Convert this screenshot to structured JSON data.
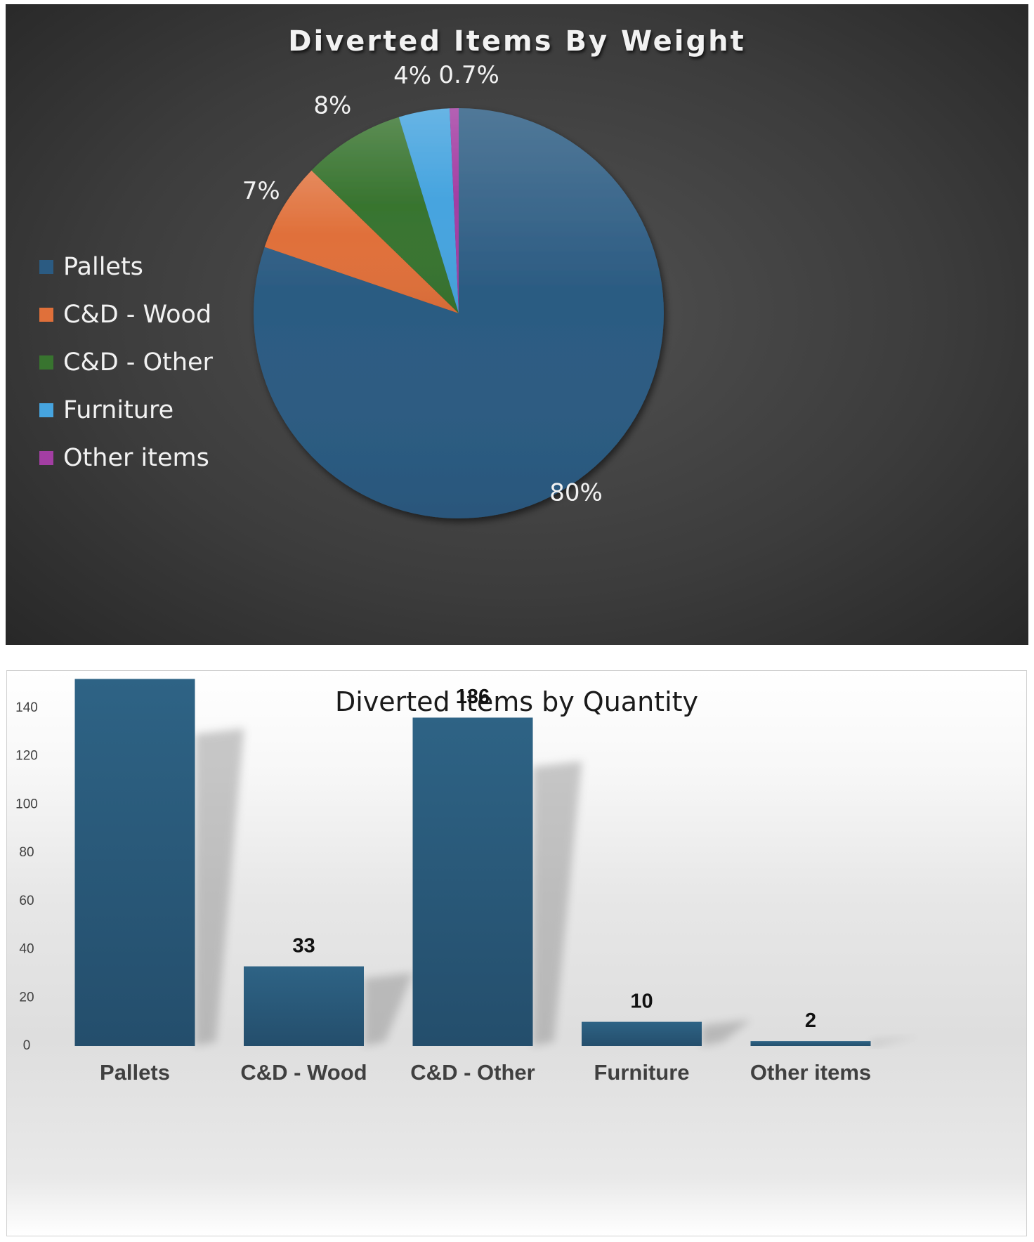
{
  "chart_data": [
    {
      "type": "pie",
      "title": "Diverted Items By Weight",
      "categories": [
        "Pallets",
        "C&D - Wood",
        "C&D - Other",
        "Furniture",
        "Other items"
      ],
      "values": [
        80,
        7,
        8,
        4,
        0.7
      ],
      "data_labels": [
        "80%",
        "7%",
        "8%",
        "4%",
        "0.7%"
      ],
      "colors": [
        "#2b5b82",
        "#e0703a",
        "#38742f",
        "#46a4df",
        "#a33ea3"
      ],
      "legend_position": "left"
    },
    {
      "type": "bar",
      "title": "Diverted Items by Quantity",
      "categories": [
        "Pallets",
        "C&D - Wood",
        "C&D - Other",
        "Furniture",
        "Other items"
      ],
      "values": [
        152,
        33,
        136,
        10,
        2
      ],
      "ylim": [
        0,
        160
      ],
      "yticks": [
        0,
        20,
        40,
        60,
        80,
        100,
        120,
        140,
        160
      ],
      "bar_color": "#2a5a7c",
      "grid": false,
      "legend": false
    }
  ]
}
